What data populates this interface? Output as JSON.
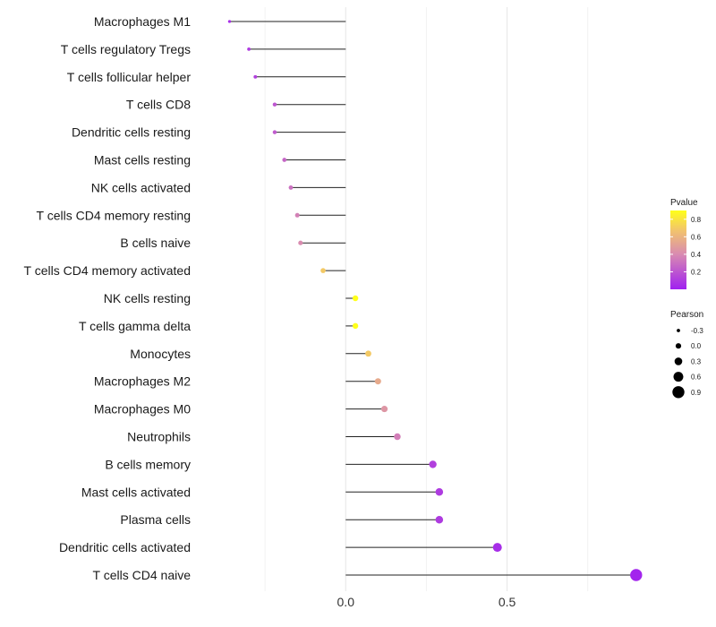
{
  "chart_data": {
    "type": "lollipop",
    "categories": [
      "Macrophages M1",
      "T cells regulatory  Tregs",
      "T cells follicular helper",
      "T cells CD8",
      "Dendritic cells resting",
      "Mast cells resting",
      "NK cells activated",
      "T cells CD4 memory resting",
      "B cells naive",
      "T cells CD4 memory activated",
      "NK cells resting",
      "T cells gamma delta",
      "Monocytes",
      "Macrophages M2",
      "Macrophages M0",
      "Neutrophils",
      "B cells memory",
      "Mast cells activated",
      "Plasma cells",
      "Dendritic cells activated",
      "T cells CD4 naive"
    ],
    "values": [
      -0.36,
      -0.3,
      -0.28,
      -0.22,
      -0.22,
      -0.19,
      -0.17,
      -0.15,
      -0.14,
      -0.07,
      0.03,
      0.03,
      0.07,
      0.1,
      0.12,
      0.16,
      0.27,
      0.29,
      0.29,
      0.47,
      0.9
    ],
    "pvalues": [
      0.05,
      0.1,
      0.12,
      0.2,
      0.22,
      0.26,
      0.3,
      0.36,
      0.4,
      0.7,
      0.95,
      0.95,
      0.7,
      0.55,
      0.45,
      0.35,
      0.12,
      0.1,
      0.1,
      0.05,
      0.02
    ],
    "xlim": [
      -0.45,
      0.92
    ],
    "xticks": [
      0.0,
      0.5
    ],
    "xtick_labels": [
      "0.0",
      "0.5"
    ],
    "minor_gridlines": [
      -0.25,
      0.25,
      0.75
    ],
    "xlabel": "",
    "ylabel": "",
    "legend": {
      "position": "right",
      "color": {
        "title": "Pvalue",
        "ticks": [
          0.2,
          0.4,
          0.6,
          0.8
        ],
        "tick_labels": [
          "0.2",
          "0.4",
          "0.6",
          "0.8"
        ],
        "range": [
          0.0,
          0.9
        ],
        "low_color": "#A020F0",
        "mid_color": "#D98CB0",
        "high_color": "#FFFF1A"
      },
      "size": {
        "title": "Pearson",
        "values": [
          -0.3,
          0.0,
          0.3,
          0.6,
          0.9
        ],
        "labels": [
          "-0.3",
          "0.0",
          "0.3",
          "0.6",
          "0.9"
        ]
      }
    }
  }
}
